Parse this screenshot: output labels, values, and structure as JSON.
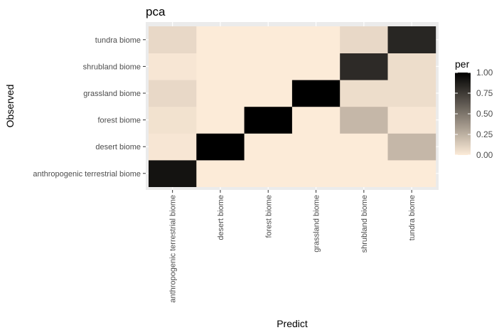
{
  "chart_data": {
    "type": "heatmap",
    "title": "pca",
    "xlabel": "Predict",
    "ylabel": "Observed",
    "x_categories": [
      "anthropogenic terrestrial biome",
      "desert biome",
      "forest biome",
      "grassland biome",
      "shrubland biome",
      "tundra biome"
    ],
    "y_categories": [
      "anthropogenic terrestrial biome",
      "desert biome",
      "forest biome",
      "grassland biome",
      "shrubland biome",
      "tundra biome"
    ],
    "values": [
      [
        0.92,
        0.0,
        0.0,
        0.0,
        0.0,
        0.0
      ],
      [
        0.02,
        1.0,
        0.0,
        0.0,
        0.0,
        0.22
      ],
      [
        0.04,
        0.0,
        1.0,
        0.0,
        0.22,
        0.02
      ],
      [
        0.08,
        0.0,
        0.0,
        1.0,
        0.06,
        0.06
      ],
      [
        0.02,
        0.0,
        0.0,
        0.0,
        0.82,
        0.06
      ],
      [
        0.08,
        0.0,
        0.0,
        0.0,
        0.08,
        0.84
      ]
    ],
    "legend": {
      "title": "per",
      "ticks": [
        "0.00",
        "0.25",
        "0.50",
        "0.75",
        "1.00"
      ],
      "min": 0,
      "max": 1,
      "low_color": "#FCEBD8",
      "high_color": "#000000"
    },
    "panel_background": "#EBEBEB",
    "grid": true
  }
}
